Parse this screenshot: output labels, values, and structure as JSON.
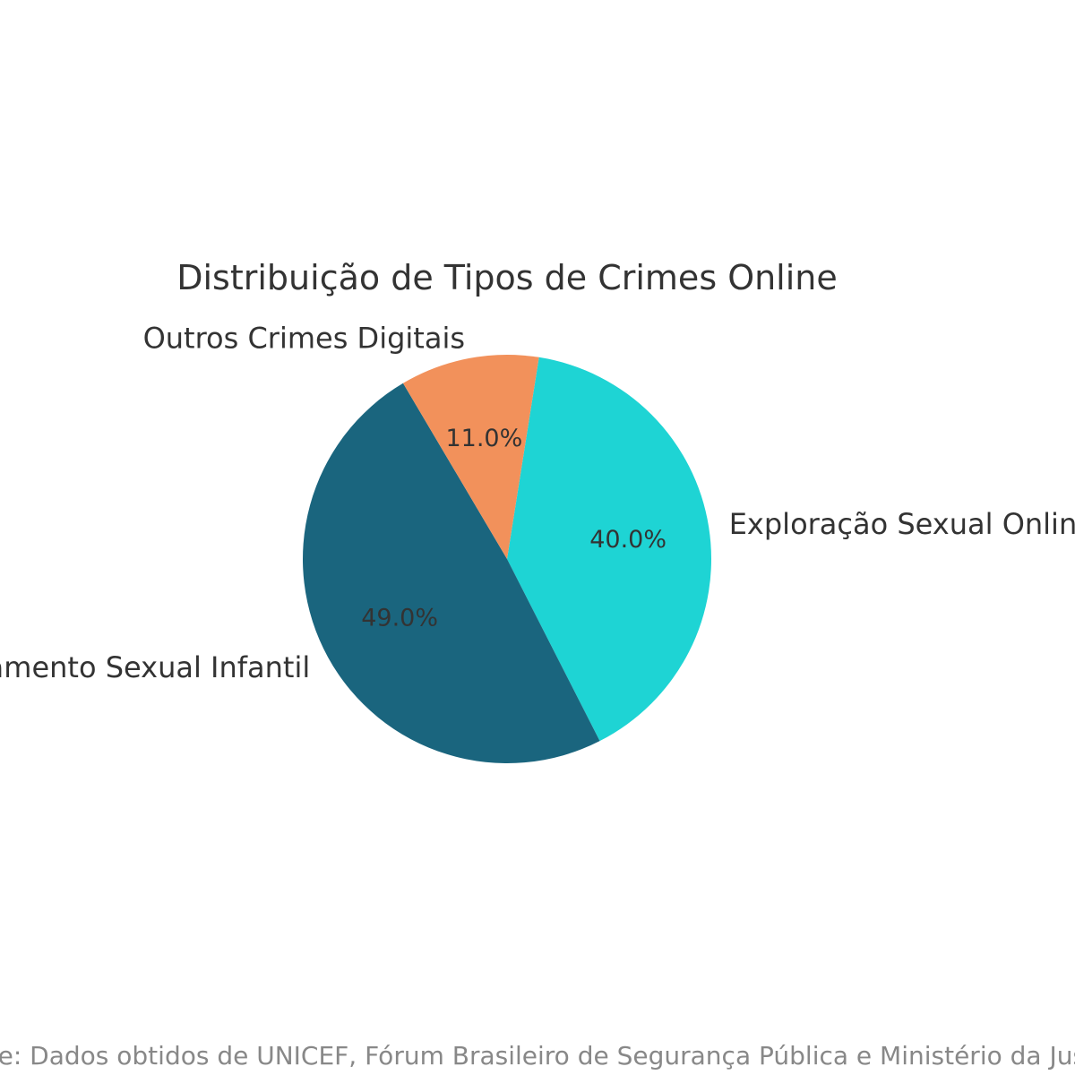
{
  "chart_data": {
    "type": "pie",
    "title": "Distribuição de Tipos de Crimes Online",
    "slices": [
      {
        "label": "Exploração Sexual Online",
        "value": 40.0,
        "pct_label": "40.0%",
        "color": "#1ed4d4"
      },
      {
        "label": "Aliciamento Sexual Infantil",
        "value": 49.0,
        "pct_label": "49.0%",
        "color": "#1a657e"
      },
      {
        "label": "Outros Crimes Digitais",
        "value": 11.0,
        "pct_label": "11.0%",
        "color": "#f2915b"
      }
    ],
    "start_angle_deg": 81,
    "direction": "clockwise",
    "source": "Fonte: Dados obtidos de UNICEF, Fórum Brasileiro de Segurança Pública e Ministério da Justiça"
  }
}
